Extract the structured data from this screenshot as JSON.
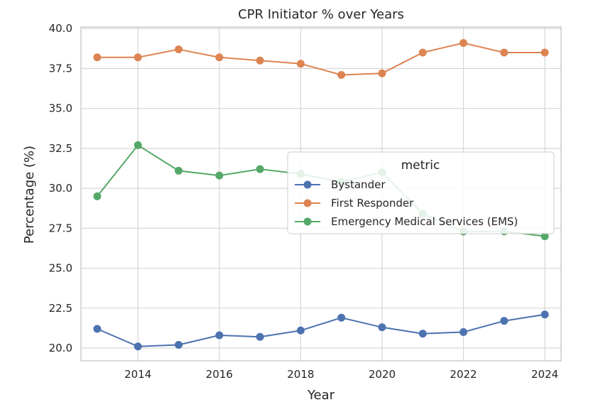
{
  "chart_data": {
    "type": "line",
    "title": "CPR Initiator % over Years",
    "xlabel": "Year",
    "ylabel": "Percentage (%)",
    "x": [
      2013,
      2014,
      2015,
      2016,
      2017,
      2018,
      2019,
      2020,
      2021,
      2022,
      2023,
      2024
    ],
    "xlim": [
      2012.6,
      2024.4
    ],
    "ylim": [
      19.2,
      40.1
    ],
    "xticks": [
      "2014",
      "2016",
      "2018",
      "2020",
      "2022",
      "2024"
    ],
    "yticks": [
      "20.0",
      "22.5",
      "25.0",
      "27.5",
      "30.0",
      "32.5",
      "35.0",
      "37.5",
      "40.0"
    ],
    "grid": true,
    "legend": {
      "title": "metric",
      "position": "center-right"
    },
    "series": [
      {
        "name": "Bystander",
        "color": "#4c72b0",
        "values": [
          21.2,
          20.1,
          20.2,
          20.8,
          20.7,
          21.1,
          21.9,
          21.3,
          20.9,
          21.0,
          21.7,
          22.1
        ]
      },
      {
        "name": "First Responder",
        "color": "#dd8452",
        "values": [
          38.2,
          38.2,
          38.7,
          38.2,
          38.0,
          37.8,
          37.1,
          37.2,
          38.5,
          39.1,
          38.5,
          38.5
        ]
      },
      {
        "name": "Emergency Medical Services (EMS)",
        "color": "#55a868",
        "values": [
          29.5,
          32.7,
          31.1,
          30.8,
          31.2,
          30.9,
          30.4,
          31.0,
          28.4,
          27.3,
          27.3,
          27.0
        ]
      }
    ]
  }
}
